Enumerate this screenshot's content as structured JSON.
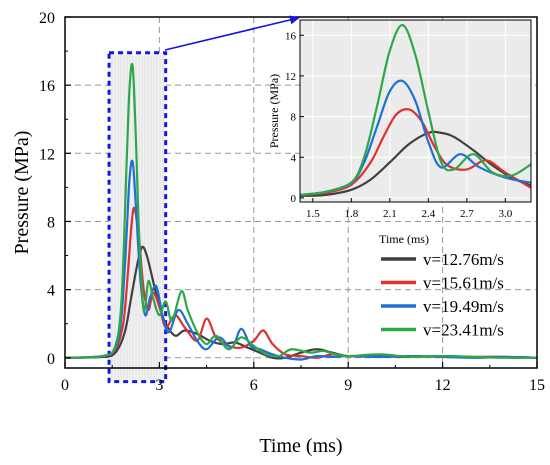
{
  "chart_data": {
    "type": "line",
    "xlabel": "Time (ms)",
    "ylabel": "Pressure (MPa)",
    "xlim": [
      0,
      15
    ],
    "ylim": [
      -0.6,
      20
    ],
    "xticks": [
      0,
      3,
      6,
      9,
      12,
      15
    ],
    "yticks": [
      0,
      4,
      8,
      12,
      16,
      20
    ],
    "grid": true,
    "legend_position": "bottom-right",
    "highlight_region": {
      "x": [
        1.4,
        3.2
      ],
      "y": [
        -1.4,
        17.9
      ]
    },
    "series": [
      {
        "name": "v=12.76m/s",
        "color": "#404040",
        "x": [
          0,
          1.2,
          1.6,
          1.9,
          2.1,
          2.3,
          2.45,
          2.6,
          2.8,
          3.0,
          3.2,
          3.5,
          3.8,
          4.2,
          4.6,
          5.0,
          5.4,
          5.8,
          6.2,
          6.6,
          7.0,
          7.5,
          8.0,
          8.5,
          9.0,
          10,
          11,
          12,
          13,
          14,
          15
        ],
        "values": [
          0,
          0.05,
          0.3,
          1.5,
          3.5,
          5.5,
          6.5,
          6.0,
          4.5,
          3.0,
          2.0,
          1.3,
          1.6,
          1.4,
          1.0,
          0.8,
          0.9,
          0.6,
          0.3,
          0.0,
          0.0,
          0.3,
          0.5,
          0.3,
          0.1,
          0.1,
          0.05,
          0.1,
          0.05,
          0.05,
          0.0
        ]
      },
      {
        "name": "v=15.61m/s",
        "color": "#e03030",
        "x": [
          0,
          1.2,
          1.6,
          1.85,
          2.0,
          2.1,
          2.2,
          2.35,
          2.5,
          2.65,
          2.8,
          3.0,
          3.2,
          3.5,
          3.8,
          4.2,
          4.5,
          4.8,
          5.2,
          5.6,
          6.0,
          6.3,
          6.6,
          7.0,
          7.5,
          8.0,
          8.5,
          9.0,
          10,
          11,
          12,
          13,
          14,
          15
        ],
        "values": [
          0,
          0.1,
          0.5,
          2.0,
          5.0,
          7.5,
          8.8,
          7.0,
          4.0,
          2.8,
          3.8,
          3.0,
          1.8,
          2.5,
          1.8,
          1.0,
          2.3,
          1.2,
          0.7,
          0.6,
          1.0,
          1.6,
          0.8,
          0.2,
          0.1,
          0.0,
          0.2,
          0.1,
          0.05,
          0.1,
          0.05,
          0.05,
          0.05,
          0.0
        ]
      },
      {
        "name": "v=19.49m/s",
        "color": "#1f6fd6",
        "x": [
          0,
          1.2,
          1.6,
          1.8,
          1.95,
          2.05,
          2.15,
          2.25,
          2.4,
          2.55,
          2.7,
          2.9,
          3.1,
          3.3,
          3.6,
          3.9,
          4.2,
          4.5,
          4.9,
          5.3,
          5.6,
          5.9,
          6.2,
          6.6,
          7.0,
          7.5,
          8.0,
          8.5,
          9.0,
          10,
          11,
          12,
          13,
          14,
          15
        ],
        "values": [
          0,
          0.1,
          0.6,
          2.5,
          7.0,
          10.5,
          11.5,
          9.0,
          4.5,
          2.5,
          3.5,
          4.2,
          2.5,
          1.5,
          2.8,
          2.0,
          1.0,
          0.5,
          1.2,
          0.6,
          1.7,
          0.7,
          0.5,
          0.2,
          0.0,
          -0.1,
          0.1,
          0.05,
          0.1,
          0.05,
          0.1,
          0.05,
          0.0,
          0.05,
          0.0
        ]
      },
      {
        "name": "v=23.41m/s",
        "color": "#2aa84a",
        "x": [
          0,
          1.2,
          1.6,
          1.8,
          1.95,
          2.05,
          2.15,
          2.25,
          2.35,
          2.5,
          2.65,
          2.8,
          3.0,
          3.2,
          3.4,
          3.7,
          3.9,
          4.2,
          4.5,
          4.8,
          5.2,
          5.6,
          6.0,
          6.4,
          6.8,
          7.2,
          7.8,
          8.2,
          8.6,
          9.0,
          10,
          11,
          12,
          13,
          14,
          15
        ],
        "values": [
          0,
          0.1,
          0.7,
          3.5,
          11.0,
          15.8,
          17.1,
          13.0,
          7.5,
          2.8,
          4.5,
          3.5,
          2.5,
          3.3,
          2.2,
          3.9,
          2.8,
          1.5,
          0.8,
          1.3,
          0.5,
          1.2,
          0.7,
          0.2,
          0.1,
          0.5,
          0.3,
          0.4,
          0.2,
          0.1,
          0.2,
          0.05,
          0.1,
          0.05,
          0.0,
          0.0
        ]
      }
    ],
    "inset": {
      "xlabel": "Time (ms)",
      "ylabel": "Pressure (MPa)",
      "xlim": [
        1.4,
        3.2
      ],
      "ylim": [
        -0.4,
        17.5
      ],
      "xticks": [
        1.5,
        1.8,
        2.1,
        2.4,
        2.7,
        3.0
      ],
      "xtick_labels": [
        "1.5",
        "1.8",
        "2.1",
        "2.4",
        "2.7",
        "3.0"
      ],
      "yticks": [
        0,
        4,
        8,
        12,
        16
      ],
      "series": [
        {
          "name": "v=12.76m/s",
          "color": "#404040",
          "x": [
            1.4,
            1.6,
            1.8,
            1.95,
            2.1,
            2.25,
            2.4,
            2.5,
            2.6,
            2.75,
            2.9,
            3.05,
            3.2
          ],
          "values": [
            0.2,
            0.3,
            0.8,
            1.8,
            3.5,
            5.3,
            6.4,
            6.4,
            6.0,
            4.7,
            3.2,
            2.0,
            1.2
          ]
        },
        {
          "name": "v=15.61m/s",
          "color": "#e03030",
          "x": [
            1.4,
            1.6,
            1.8,
            1.95,
            2.05,
            2.15,
            2.25,
            2.35,
            2.45,
            2.55,
            2.7,
            2.85,
            3.0,
            3.2
          ],
          "values": [
            0.3,
            0.5,
            1.3,
            3.5,
            6.0,
            8.2,
            8.7,
            7.5,
            5.0,
            3.2,
            2.8,
            3.7,
            2.5,
            1.0
          ]
        },
        {
          "name": "v=19.49m/s",
          "color": "#1f6fd6",
          "x": [
            1.4,
            1.6,
            1.8,
            1.9,
            2.0,
            2.1,
            2.2,
            2.3,
            2.4,
            2.5,
            2.65,
            2.8,
            3.0,
            3.2
          ],
          "values": [
            0.3,
            0.6,
            1.5,
            3.5,
            7.0,
            10.5,
            11.5,
            9.5,
            5.5,
            3.0,
            4.3,
            3.0,
            2.0,
            1.5
          ]
        },
        {
          "name": "v=23.41m/s",
          "color": "#2aa84a",
          "x": [
            1.4,
            1.6,
            1.8,
            1.9,
            2.0,
            2.1,
            2.2,
            2.3,
            2.4,
            2.5,
            2.6,
            2.75,
            2.9,
            3.05,
            3.2
          ],
          "values": [
            0.3,
            0.6,
            1.5,
            4.0,
            9.0,
            14.5,
            17.0,
            14.0,
            8.5,
            3.5,
            2.8,
            4.3,
            2.5,
            2.2,
            3.3
          ]
        }
      ]
    }
  }
}
